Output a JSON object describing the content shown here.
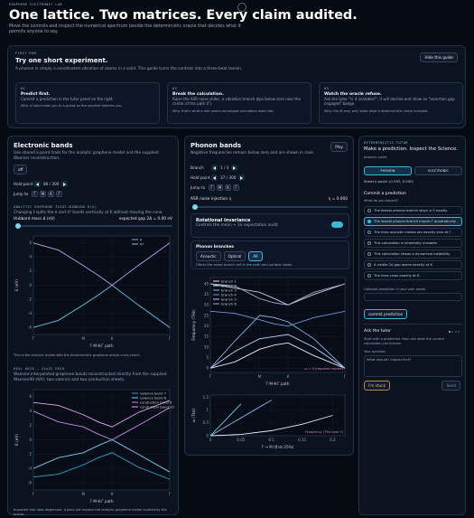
{
  "header": {
    "eyebrow": "GRAPHENE ELECTRONIC LAB",
    "title": "One lattice. Two matrices. Every claim audited.",
    "subtitle": "Move the controls and inspect the numerical spectrum beside the deterministic oracle that decides what it permits anyone to say."
  },
  "guide": {
    "eyebrow": "FIRST RUN",
    "title": "Try one short experiment.",
    "description": "A phonon is simply a coordinated vibration of atoms in a solid. This guide turns the controls into a three-beat lesson.",
    "button": "Hide this guide",
    "steps": [
      {
        "number": "01",
        "title": "Predict first.",
        "text": "Commit a prediction in the tutor panel on the right.",
        "why": "Why: a tutor holds you to a guess so the surprise teaches you."
      },
      {
        "number": "02",
        "title": "Break the calculation.",
        "text": "Raise the ASR noise slider, a vibration branch dips below zero near the center of the path (Γ).",
        "why": "Why: that's what a real under-converged calculation looks like."
      },
      {
        "number": "03",
        "title": "Watch the oracle refuse.",
        "text": "Ask the tutor \"Is it unstable?\", it will decline and show an \"assertion gap engaged\" badge.",
        "why": "Why: the AI may only state what a deterministic check licensed."
      }
    ]
  },
  "electronic": {
    "title": "Electronic bands",
    "description": "Use shared k-point trails for the analytic graphene model and the supplied Wannier reconstruction.",
    "toggle": "off",
    "hold_label": "Hold point",
    "hold_value": "86 / 300",
    "jump_label": "Jump to",
    "jump": [
      "Γ",
      "M",
      "K",
      "Γ"
    ],
    "analytic_heading": "ANALYTIC GRAPHENE TIGHT-BINDING H(k)",
    "analytic_text": "Changing t splits the π and π* bands vertically at K without moving the cone.",
    "mass_label": "Hubbard mass Δ (eV)",
    "mass_readout": "expected gap 2Δ = 0.00 eV",
    "plot1": {
      "type": "line",
      "xlabel": "Γ-M-K-Γ path",
      "ylabel": "E (eV)",
      "grid": true,
      "legend": "upper right",
      "x": [
        0,
        0.5,
        1,
        1.3,
        1.577,
        2.1,
        2.732
      ],
      "xlim": [
        0,
        2.732
      ],
      "ylim": [
        -7,
        7
      ],
      "xticks": [
        {
          "value": 0,
          "label": "Γ"
        },
        {
          "value": 1,
          "label": "M"
        },
        {
          "value": 1.577,
          "label": "K"
        },
        {
          "value": 2.732,
          "label": "Γ"
        }
      ],
      "yticks": [
        -6,
        -4,
        -2,
        0,
        2,
        4,
        6
      ],
      "series": [
        {
          "name": "π",
          "color": "#5ec8e8",
          "values": [
            -6,
            -5,
            -2.8,
            -1.4,
            0,
            -2.8,
            -6
          ]
        },
        {
          "name": "π*",
          "color": "#b7a6f0",
          "values": [
            6,
            5,
            2.8,
            1.4,
            0,
            2.8,
            6
          ]
        }
      ]
    },
    "caption1": "This is the analytic model with the deterministic graphene oracle cross-check.",
    "real_heading": "REAL DATA — 32x32 GRID",
    "real_text": "Wannier-interpolated graphene bands reconstructed directly from the supplied Wannier90 H(R): two valence and two conduction sheets.",
    "plot2": {
      "type": "line",
      "xlabel": "Γ-M-K-Γ path",
      "ylabel": "E (eV)",
      "grid": true,
      "legend": "upper right",
      "x": [
        0,
        0.5,
        1,
        1.3,
        1.577,
        2.1,
        2.732
      ],
      "xlim": [
        0,
        2.732
      ],
      "ylim": [
        -7,
        7
      ],
      "xticks": [
        {
          "value": 0,
          "label": "Γ"
        },
        {
          "value": 1,
          "label": "M"
        },
        {
          "value": 1.577,
          "label": "K"
        },
        {
          "value": 2.732,
          "label": "Γ"
        }
      ],
      "yticks": [
        -6,
        -4,
        -2,
        0,
        2,
        4,
        6
      ],
      "series": [
        {
          "name": "valence band 7",
          "color": "#2aa6c8",
          "values": [
            -5.2,
            -4.8,
            -3.5,
            -2.5,
            -1.8,
            -3.8,
            -5.5
          ]
        },
        {
          "name": "valence band 8",
          "color": "#6fd6ea",
          "values": [
            -4,
            -2.5,
            -1.8,
            -0.8,
            0,
            -2,
            -4.5
          ]
        },
        {
          "name": "conduction band 9",
          "color": "#c48be8",
          "values": [
            4,
            2.5,
            1.8,
            0.8,
            0,
            2,
            4.5
          ]
        },
        {
          "name": "conduction band 10",
          "color": "#e6a8f2",
          "values": [
            5.2,
            4.8,
            3.5,
            2.5,
            1.8,
            3.8,
            5.5
          ]
        }
      ]
    },
    "caption2": "Imported real data dispersion; it does not replace the analytic graphene model audited by the oracle."
  },
  "phonon": {
    "title": "Phonon bands",
    "description": "Negative frequencies remain below zero and are shown in rose.",
    "play": "Play",
    "branch_label": "Branch",
    "branch_value": "1 / 3",
    "hold_label": "Hold point",
    "hold_value": "37 / 300",
    "jump_label": "Jump to",
    "jump": [
      "Γ",
      "M",
      "K",
      "Γ"
    ],
    "noise_label": "ASR noise injection η",
    "noise_readout": "η = 0.000",
    "rotation_title": "Rotational invariance",
    "rotation_text": "Controls the mean + 2α expectation audit.",
    "rotation_on": true,
    "branches_title": "Phonon branches",
    "branch_tabs": [
      "Acoustic",
      "Optical",
      "All"
    ],
    "active_tab": 2,
    "branches_text": "Filters the same branch set in the path and surface views.",
    "plot": {
      "type": "line",
      "xlabel": "Γ-M-K-Γ path",
      "ylabel": "Frequency (THz)",
      "grid": true,
      "legend": "upper left",
      "annotation": "ω = 0 (required modes)",
      "x": [
        0,
        0.5,
        1,
        1.3,
        1.577,
        2.1,
        2.732
      ],
      "xlim": [
        0,
        2.732
      ],
      "ylim": [
        -2,
        43
      ],
      "xticks": [
        {
          "value": 0,
          "label": "Γ"
        },
        {
          "value": 1,
          "label": "M"
        },
        {
          "value": 1.577,
          "label": "K"
        },
        {
          "value": 2.732,
          "label": "Γ"
        }
      ],
      "yticks": [
        0,
        5,
        10,
        15,
        20,
        25,
        30,
        35,
        40
      ],
      "series": [
        {
          "name": "branch 1",
          "color": "#e8f0ff",
          "values": [
            0,
            3,
            9,
            11,
            12,
            6,
            0
          ]
        },
        {
          "name": "branch 2",
          "color": "#b8d4f4",
          "values": [
            0,
            8,
            14,
            15,
            16,
            10,
            0
          ]
        },
        {
          "name": "branch 3",
          "color": "#8cb6e6",
          "values": [
            0,
            13,
            25,
            24,
            22,
            14,
            0
          ]
        },
        {
          "name": "branch 4",
          "color": "#6a9ad8",
          "values": [
            27,
            26,
            23,
            21,
            20,
            24,
            27
          ]
        },
        {
          "name": "branch 5",
          "color": "#c6d0e0",
          "values": [
            40,
            38,
            36,
            33,
            30,
            35,
            40
          ]
        },
        {
          "name": "branch 6",
          "color": "#9aa8c0",
          "values": [
            40,
            39,
            33,
            31,
            30,
            36,
            40
          ]
        }
      ]
    },
    "zoom": {
      "type": "line",
      "xlabel": "Γ → M (first 25%)",
      "ylabel": "ω (THz)",
      "grid": true,
      "annotation": "Frequency (THz near Γ)",
      "x": [
        0,
        0.05,
        0.1,
        0.15,
        0.2
      ],
      "xlim": [
        0,
        0.22
      ],
      "ylim": [
        0,
        1.6
      ],
      "xticks": [
        0,
        0.05,
        0.1,
        0.15,
        0.2
      ],
      "yticks": [
        0,
        0.5,
        1,
        1.5
      ],
      "series": [
        {
          "name": "ZA",
          "color": "#e8f0ff",
          "values": [
            0,
            0.05,
            0.2,
            0.45,
            0.8
          ]
        },
        {
          "name": "TA",
          "color": "#8cb6e6",
          "values": [
            0,
            0.7,
            1.4,
            null,
            null
          ]
        },
        {
          "name": "LA",
          "color": "#6fd6ea",
          "values": [
            0,
            1.25,
            null,
            null,
            null
          ]
        }
      ]
    }
  },
  "tutor": {
    "eyebrow": "DETERMINISTIC TUTOR",
    "title": "Make a prediction. Inspect the Science.",
    "status": "phonon: point",
    "tabs": [
      "PHONON",
      "ELECTRONIC"
    ],
    "active_tab": 0,
    "kpoint": "Sheet k-point: (0.392, 0.000)",
    "commit_title": "Commit a prediction",
    "question": "What do you expect?",
    "options": [
      "The lowest phonon branch stays ≥ 0 mostly.",
      "The lowest phonon branch moves Γ quadratically.",
      "The lines acoustic modes are exactly zero at Γ.",
      "This calculation is inherently unstable.",
      "This calculation shows a dynamical instability.",
      "A visible 2Δ gap opens exactly at K.",
      "The lines cross exactly at K."
    ],
    "selected_option": 1,
    "optional_label": "Optional prediction in your own words",
    "commit_button": "commit prediction",
    "ask_title": "Ask the tutor",
    "ask_text": "Start with a prediction, then ask what the current calculation can license.",
    "question_label": "Your question",
    "placeholder": "What should I expect first?",
    "stuck_button": "I'm stuck",
    "send_button": "Send"
  }
}
